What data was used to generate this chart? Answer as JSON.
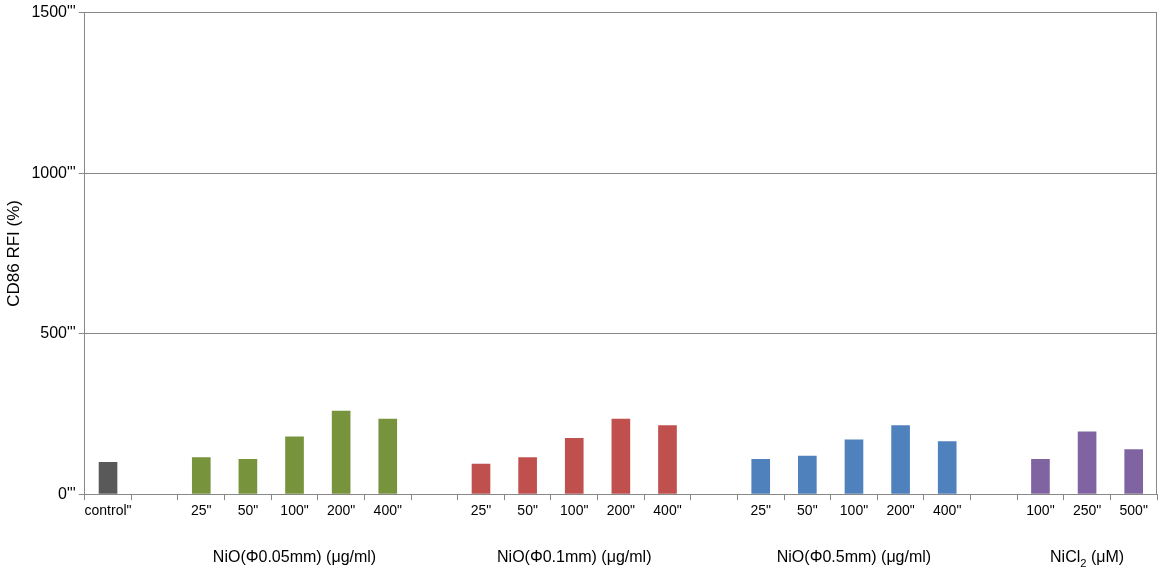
{
  "chart_data": {
    "type": "bar",
    "ylabel": "CD86 RFI (%)",
    "categories": [
      "control\"",
      null,
      "25\"",
      "50\"",
      "100\"",
      "200\"",
      "400\"",
      null,
      "25\"",
      "50\"",
      "100\"",
      "200\"",
      "400\"",
      null,
      "25\"",
      "50\"",
      "100\"",
      "200\"",
      "400\"",
      null,
      "100\"",
      "250\"",
      "500\""
    ],
    "values": [
      100,
      null,
      115,
      110,
      180,
      260,
      235,
      null,
      95,
      115,
      175,
      235,
      215,
      null,
      110,
      120,
      170,
      215,
      165,
      null,
      110,
      195,
      140
    ],
    "colors": [
      "#595959",
      null,
      "#77933c",
      "#77933c",
      "#77933c",
      "#77933c",
      "#77933c",
      null,
      "#c0504d",
      "#c0504d",
      "#c0504d",
      "#c0504d",
      "#c0504d",
      null,
      "#4f81bd",
      "#4f81bd",
      "#4f81bd",
      "#4f81bd",
      "#4f81bd",
      null,
      "#8064a2",
      "#8064a2",
      "#8064a2"
    ],
    "ylim": [
      0,
      1500
    ],
    "yticks": [
      {
        "value": 0,
        "label": "0\"'"
      },
      {
        "value": 500,
        "label": "500\"'"
      },
      {
        "value": 1000,
        "label": "1000\"'"
      },
      {
        "value": 1500,
        "label": "1500\"'"
      }
    ],
    "grid": "y",
    "legend": false,
    "annotations": [
      "NiO(Φ0.05mm) (μg/ml)",
      "NiO(Φ0.1mm) (μg/ml)",
      "NiO(Φ0.5mm) (μg/ml)",
      "NiCl$_{2}$ (μM)"
    ]
  }
}
